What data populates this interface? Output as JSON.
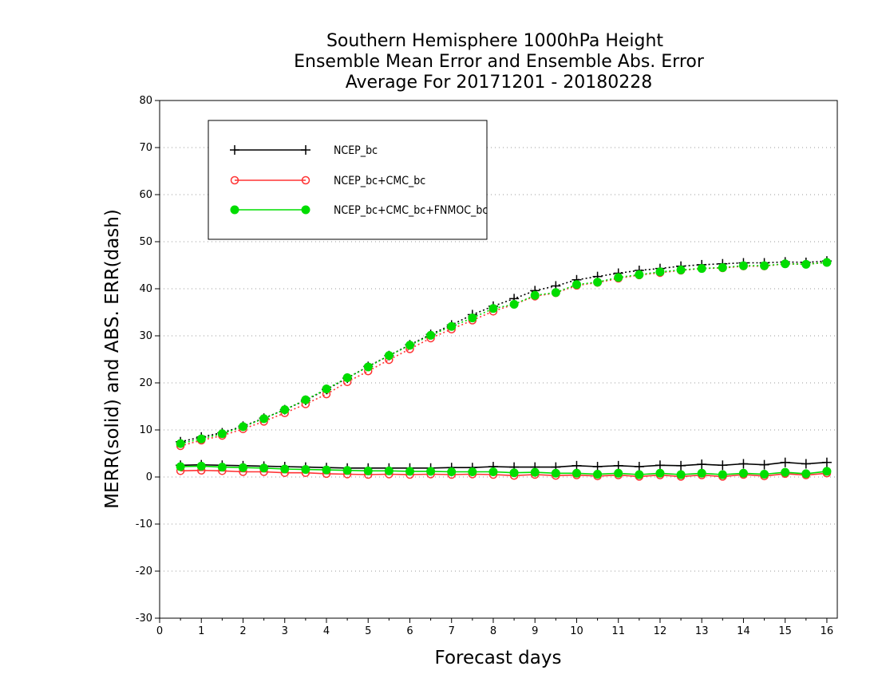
{
  "chart_data": {
    "type": "line",
    "title": [
      "Southern Hemisphere 1000hPa Height",
      "Ensemble Mean Error and Ensemble Abs. Error",
      "Average For 20171201 - 20180228"
    ],
    "xlabel": "Forecast days",
    "ylabel": "MERR(solid) and ABS. ERR(dash)",
    "xlim": [
      0,
      16.25
    ],
    "ylim": [
      -30,
      80
    ],
    "xticks": [
      0,
      1,
      2,
      3,
      4,
      5,
      6,
      7,
      8,
      9,
      10,
      11,
      12,
      13,
      14,
      15,
      16
    ],
    "yticks": [
      -30,
      -20,
      -10,
      0,
      10,
      20,
      30,
      40,
      50,
      60,
      70,
      80
    ],
    "grid": "horizontal dotted",
    "legend_position": "top-left",
    "x": [
      0.5,
      1,
      1.5,
      2,
      2.5,
      3,
      3.5,
      4,
      4.5,
      5,
      5.5,
      6,
      6.5,
      7,
      7.5,
      8,
      8.5,
      9,
      9.5,
      10,
      10.5,
      11,
      11.5,
      12,
      12.5,
      13,
      13.5,
      14,
      14.5,
      15,
      15.5,
      16
    ],
    "series": [
      {
        "name": "NCEP_bc",
        "color": "#000000",
        "marker": "plus",
        "merr": [
          2.5,
          2.6,
          2.5,
          2.4,
          2.3,
          2.2,
          2.1,
          2.0,
          1.9,
          1.9,
          1.9,
          1.9,
          1.9,
          2.0,
          2.0,
          2.2,
          2.1,
          2.1,
          2.1,
          2.4,
          2.2,
          2.4,
          2.2,
          2.5,
          2.4,
          2.7,
          2.5,
          2.8,
          2.6,
          3.1,
          2.8,
          3.1
        ],
        "abs_err": [
          7.5,
          8.5,
          9.4,
          10.8,
          12.5,
          14.3,
          16.3,
          18.6,
          21.0,
          23.5,
          25.8,
          28.1,
          30.3,
          32.3,
          34.5,
          36.3,
          37.9,
          39.6,
          40.6,
          41.9,
          42.6,
          43.3,
          43.9,
          44.3,
          44.8,
          45.1,
          45.3,
          45.5,
          45.5,
          45.7,
          45.6,
          45.9
        ]
      },
      {
        "name": "NCEP_bc+CMC_bc",
        "color": "#ff3333",
        "marker": "open-circle",
        "merr": [
          1.3,
          1.4,
          1.3,
          1.1,
          1.1,
          0.9,
          0.9,
          0.7,
          0.6,
          0.5,
          0.6,
          0.5,
          0.6,
          0.5,
          0.6,
          0.5,
          0.3,
          0.5,
          0.3,
          0.4,
          0.2,
          0.4,
          0.1,
          0.4,
          0.1,
          0.4,
          0.1,
          0.5,
          0.2,
          0.7,
          0.4,
          0.8
        ],
        "abs_err": [
          6.6,
          7.8,
          8.8,
          10.2,
          11.8,
          13.6,
          15.5,
          17.6,
          20.2,
          22.5,
          24.9,
          27.2,
          29.5,
          31.4,
          33.3,
          35.2,
          36.7,
          38.4,
          39.1,
          40.7,
          41.3,
          42.2,
          42.9,
          43.4,
          43.9,
          44.3,
          44.4,
          44.8,
          44.8,
          45.3,
          45.2,
          45.6
        ]
      },
      {
        "name": "NCEP_bc+CMC_bc+FNMOC_bc",
        "color": "#00dd00",
        "marker": "filled-circle",
        "merr": [
          2.2,
          2.3,
          2.1,
          2.0,
          1.9,
          1.7,
          1.6,
          1.5,
          1.4,
          1.3,
          1.3,
          1.2,
          1.2,
          1.1,
          1.1,
          1.1,
          0.9,
          1.0,
          0.8,
          0.8,
          0.6,
          0.8,
          0.5,
          0.8,
          0.5,
          0.8,
          0.5,
          0.8,
          0.6,
          1.0,
          0.7,
          1.2
        ],
        "abs_err": [
          7.1,
          8.1,
          9.2,
          10.7,
          12.4,
          14.3,
          16.4,
          18.7,
          21.1,
          23.4,
          25.8,
          28.0,
          30.1,
          32.0,
          33.8,
          35.8,
          36.7,
          38.6,
          39.2,
          40.9,
          41.4,
          42.4,
          43.0,
          43.6,
          44.0,
          44.3,
          44.5,
          44.9,
          44.9,
          45.3,
          45.2,
          45.6
        ]
      }
    ]
  }
}
